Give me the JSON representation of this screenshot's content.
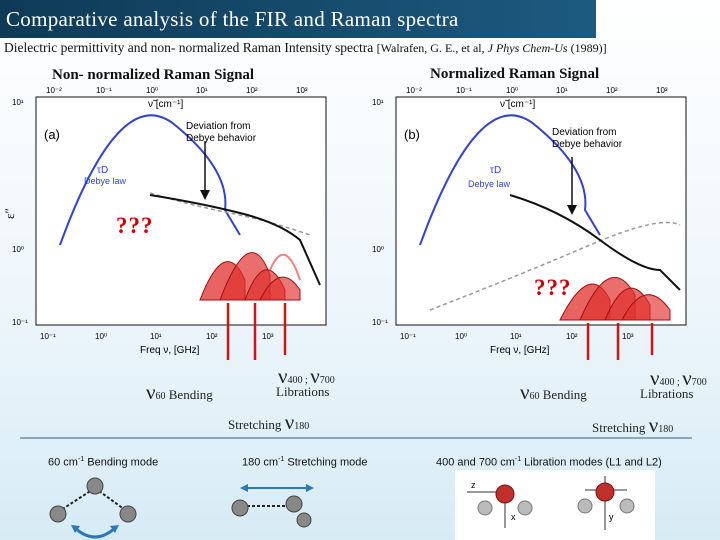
{
  "title": "Comparative analysis of the FIR and Raman spectra",
  "subtitle": {
    "text": "Dielectric permittivity and non- normalized Raman Intensity spectra",
    "ref_prefix": "[Walrafen, G. E., et al, ",
    "ref_journal": "J Phys Chem-Us",
    "ref_suffix": " (1989)]"
  },
  "left_panel": {
    "heading": "Non- normalized Raman Signal",
    "panel_letter": "(a)",
    "question": "???",
    "annotation_line1": "Deviation from",
    "annotation_line2": "Debye behavior",
    "tau": "τD",
    "debye_law": "Debye law",
    "top_axis": "ν̃ [cm⁻¹]",
    "bottom_axis": "Freq ν, [GHz]",
    "y_axis": "ε″",
    "x_ticks": [
      "10⁻¹",
      "10⁰",
      "10¹",
      "10²",
      "10³"
    ],
    "top_ticks": [
      "10⁻²",
      "10⁻¹",
      "10⁰",
      "10¹",
      "10²",
      "10³"
    ],
    "y_ticks": [
      "10¹",
      "10⁰",
      "10⁻¹"
    ]
  },
  "right_panel": {
    "heading": "Normalized Raman Signal",
    "panel_letter": "(b)",
    "question": "???",
    "annotation_line1": "Deviation from",
    "annotation_line2": "Debye behavior",
    "tau": "τD",
    "debye_law": "Debye law",
    "top_axis": "ν̃ [cm⁻¹]",
    "bottom_axis": "Freq ν, [GHz]",
    "x_ticks": [
      "10⁻¹",
      "10⁰",
      "10¹",
      "10²",
      "10³"
    ],
    "top_ticks": [
      "10⁻²",
      "10⁻¹",
      "10⁰",
      "10¹",
      "10²",
      "10³"
    ],
    "y_ticks": [
      "10¹",
      "10⁰",
      "10⁻¹"
    ]
  },
  "mode_labels": {
    "bending_nu": "ν",
    "bending_sub": "60",
    "bending_word": "Bending",
    "libr_nu": "ν",
    "libr_sub": "400 ; ",
    "libr_nu2": "ν",
    "libr_sub2": "700",
    "libr_word": "Librations",
    "stretch_word": "Stretching",
    "stretch_nu": "ν",
    "stretch_sub": "180"
  },
  "captions": {
    "bending": "60 cm",
    "bending_sup": "-1",
    "bending_rest": " Bending mode",
    "stretch": "180 cm",
    "stretch_sup": "-1",
    "stretch_rest": " Stretching mode",
    "libration": "400 and 700 cm",
    "libration_sup": "-1",
    "libration_rest": " Libration modes (L1 and L2)"
  },
  "axis_letters": {
    "x": "x",
    "y": "y",
    "z": "z"
  },
  "colors": {
    "title_bg": "#0e3a56",
    "debye": "#3344cc",
    "raman": "#e0302e",
    "arrow": "#d01515",
    "question": "#c00000"
  }
}
